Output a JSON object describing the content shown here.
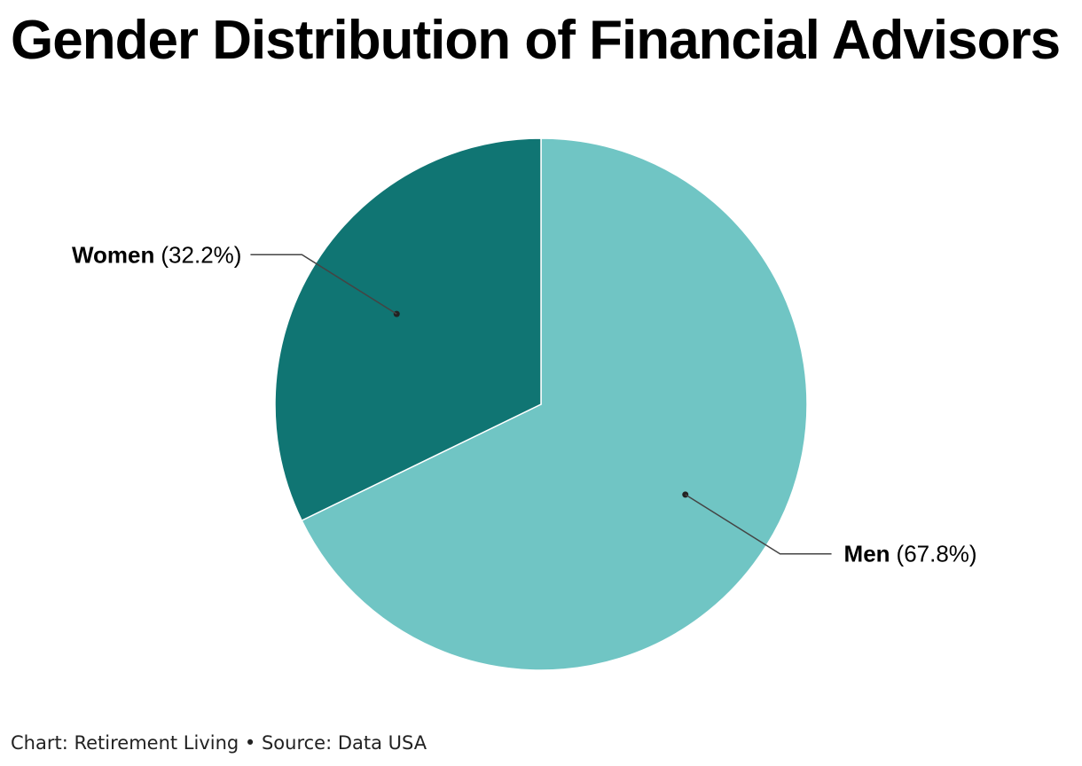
{
  "chart_data": {
    "type": "pie",
    "title": "Gender Distribution of Financial Advisors",
    "slices": [
      {
        "label": "Men",
        "value": 67.8,
        "value_label": "(67.8%)",
        "color": "#70c5c4"
      },
      {
        "label": "Women",
        "value": 32.2,
        "value_label": "(32.2%)",
        "color": "#107573"
      }
    ],
    "start_angle": "12 o'clock",
    "direction": "clockwise",
    "slice_border_color": "#ffffff",
    "leader_line_color": "#444444"
  },
  "footer": {
    "credit": "Chart: Retirement Living • Source: Data USA"
  }
}
